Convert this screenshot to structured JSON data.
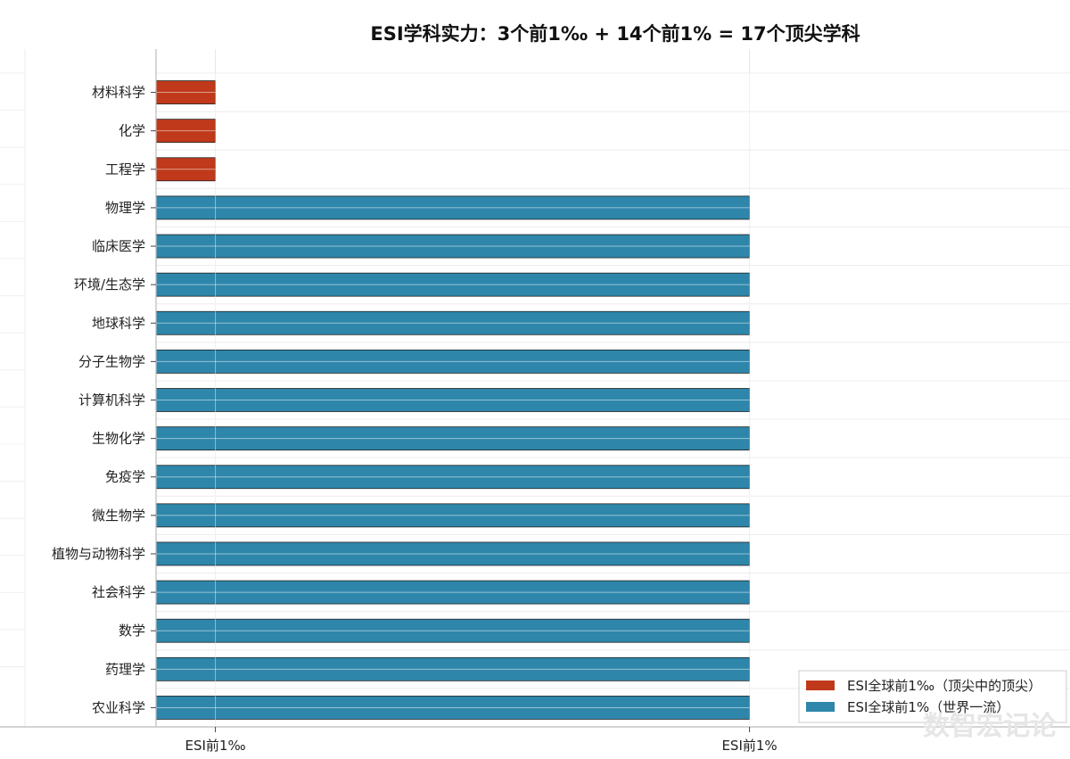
{
  "chart_data": {
    "type": "bar",
    "orientation": "horizontal",
    "title": "ESI学科实力：3个前1‰ + 14个前1% = 17个顶尖学科",
    "categories": [
      "材料科学",
      "化学",
      "工程学",
      "物理学",
      "临床医学",
      "环境/生态学",
      "地球科学",
      "分子生物学",
      "计算机科学",
      "生物化学",
      "免疫学",
      "微生物学",
      "植物与动物科学",
      "社会科学",
      "数学",
      "药理学",
      "农业科学"
    ],
    "series": [
      {
        "name": "ESI全球前1‰（顶尖中的顶尖）",
        "color": "#c0391b",
        "values": [
          1,
          1,
          1,
          null,
          null,
          null,
          null,
          null,
          null,
          null,
          null,
          null,
          null,
          null,
          null,
          null,
          null
        ]
      },
      {
        "name": "ESI全球前1%（世界一流）",
        "color": "#2e86ab",
        "values": [
          null,
          null,
          null,
          10,
          10,
          10,
          10,
          10,
          10,
          10,
          10,
          10,
          10,
          10,
          10,
          10,
          10
        ]
      }
    ],
    "x_ticks": [
      {
        "value": 1,
        "label": "ESI前1‰"
      },
      {
        "value": 10,
        "label": "ESI前1%"
      }
    ],
    "xlim": [
      0,
      15.4
    ],
    "grid": true,
    "legend_position": "bottom-right"
  },
  "watermark": "数智宏记论"
}
